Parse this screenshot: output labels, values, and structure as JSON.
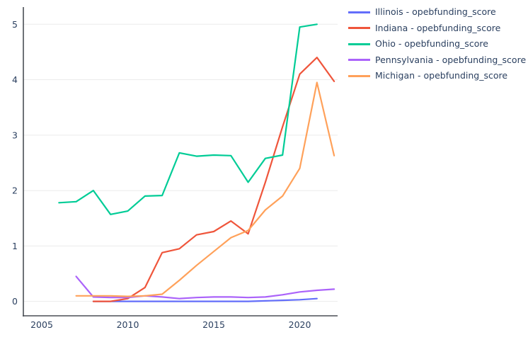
{
  "page": {
    "background_color": "#ffffff",
    "text_color": "#2a3f5f"
  },
  "chart_data": {
    "type": "line",
    "title": "",
    "xlabel": "",
    "ylabel": "",
    "xlim": [
      2003.93,
      2022.2
    ],
    "ylim": [
      -0.26,
      5.31
    ],
    "xticks": [
      2005,
      2010,
      2015,
      2020
    ],
    "yticks": [
      0,
      1,
      2,
      3,
      4,
      5
    ],
    "grid": "horizontal-only",
    "axis_color": "#4a4f55",
    "grid_color": "#ebebeb",
    "tick_color": "#2a3f5f",
    "line_width": 2.2,
    "legend_position": "right-outside",
    "series": [
      {
        "name": "Illinois - opebfunding_score",
        "color": "#636EFA",
        "x": [
          2008,
          2009,
          2010,
          2011,
          2012,
          2013,
          2014,
          2015,
          2016,
          2017,
          2018,
          2019,
          2020,
          2021
        ],
        "y": [
          0.0,
          0.0,
          0.0,
          0.0,
          0.0,
          0.0,
          0.0,
          0.0,
          0.0,
          0.0,
          0.01,
          0.02,
          0.03,
          0.05
        ]
      },
      {
        "name": "Indiana - opebfunding_score",
        "color": "#EF553B",
        "x": [
          2008,
          2009,
          2010,
          2011,
          2012,
          2013,
          2014,
          2015,
          2016,
          2017,
          2018,
          2019,
          2020,
          2021,
          2022
        ],
        "y": [
          0.0,
          0.0,
          0.05,
          0.25,
          0.88,
          0.95,
          1.2,
          1.26,
          1.45,
          1.22,
          2.15,
          3.15,
          4.1,
          4.4,
          3.97
        ]
      },
      {
        "name": "Ohio - opebfunding_score",
        "color": "#00CC96",
        "x": [
          2006,
          2007,
          2008,
          2009,
          2010,
          2011,
          2012,
          2013,
          2014,
          2015,
          2016,
          2017,
          2018,
          2019,
          2020,
          2021
        ],
        "y": [
          1.78,
          1.8,
          2.0,
          1.57,
          1.63,
          1.9,
          1.91,
          2.68,
          2.62,
          2.64,
          2.63,
          2.15,
          2.58,
          2.64,
          4.95,
          5.0
        ]
      },
      {
        "name": "Pennsylvania - opebfunding_score",
        "color": "#AB63FA",
        "x": [
          2007,
          2008,
          2009,
          2010,
          2011,
          2012,
          2013,
          2014,
          2015,
          2016,
          2017,
          2018,
          2019,
          2020,
          2021,
          2022
        ],
        "y": [
          0.45,
          0.08,
          0.07,
          0.07,
          0.1,
          0.08,
          0.05,
          0.07,
          0.08,
          0.08,
          0.07,
          0.08,
          0.12,
          0.17,
          0.2,
          0.22
        ]
      },
      {
        "name": "Michigan - opebfunding_score",
        "color": "#FFA15A",
        "x": [
          2007,
          2008,
          2009,
          2010,
          2011,
          2012,
          2013,
          2014,
          2015,
          2016,
          2017,
          2018,
          2019,
          2020,
          2021,
          2022
        ],
        "y": [
          0.1,
          0.1,
          0.1,
          0.09,
          0.1,
          0.13,
          0.38,
          0.65,
          0.9,
          1.15,
          1.28,
          1.65,
          1.9,
          2.4,
          3.95,
          2.63
        ]
      }
    ]
  }
}
